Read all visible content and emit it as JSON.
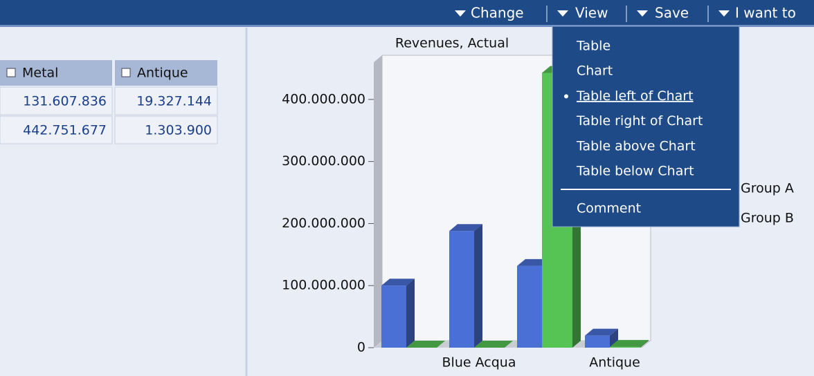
{
  "toolbar": {
    "items": [
      "Change",
      "View",
      "Save",
      "I want to"
    ]
  },
  "table": {
    "headers": [
      "Metal",
      "Antique"
    ],
    "rows": [
      [
        "131.607.836",
        "19.327.144"
      ],
      [
        "442.751.677",
        "1.303.900"
      ]
    ]
  },
  "menu": {
    "items": [
      "Table",
      "Chart",
      "Table left of Chart",
      "Table right of Chart",
      "Table above Chart",
      "Table below Chart",
      "Comment"
    ],
    "selected": 2
  },
  "chart_data": {
    "type": "bar",
    "title": "Revenues, Actual",
    "categories": [
      null,
      "Blue Acqua",
      null,
      "Antique"
    ],
    "series": [
      {
        "name": "Group A",
        "color": "#4a70d6",
        "values": [
          100000000,
          188000000,
          131607836,
          19327144
        ]
      },
      {
        "name": "Group B",
        "color": "#55c455",
        "values": [
          0,
          0,
          442751677,
          1303900
        ]
      }
    ],
    "ylim": [
      0,
      460000000
    ],
    "yticks": [
      0,
      {
        "value": 100000000,
        "label": "100.000.000"
      },
      {
        "value": 200000000,
        "label": "200.000.000"
      },
      {
        "value": 300000000,
        "label": "300.000.000"
      },
      {
        "value": 400000000,
        "label": "400.000.000"
      }
    ]
  }
}
